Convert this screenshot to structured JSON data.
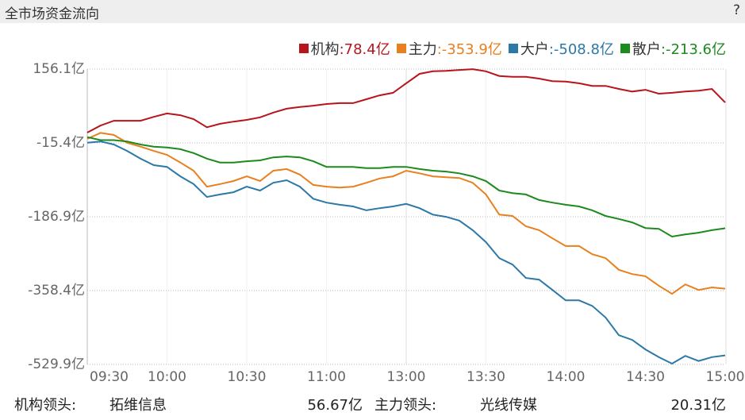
{
  "chart_data": {
    "type": "line",
    "title": "全市场资金流向",
    "help": "?",
    "categories": [
      "09:30",
      null,
      null,
      null,
      null,
      null,
      "10:00",
      null,
      null,
      null,
      null,
      null,
      "10:30",
      null,
      null,
      null,
      null,
      null,
      "11:00",
      null,
      null,
      null,
      null,
      null,
      "13:00",
      null,
      null,
      null,
      null,
      null,
      "13:30",
      null,
      null,
      null,
      null,
      null,
      "14:00",
      null,
      null,
      null,
      null,
      null,
      "14:30",
      null,
      null,
      null,
      null,
      null,
      "15:00"
    ],
    "ylim": [
      -529.9,
      156.1
    ],
    "yticks": [
      {
        "value": 156.1,
        "label": "156.1亿"
      },
      {
        "value": -15.4,
        "label": "-15.4亿"
      },
      {
        "value": -186.9,
        "label": "-186.9亿"
      },
      {
        "value": -358.4,
        "label": "-358.4亿"
      },
      {
        "value": -529.9,
        "label": "-529.9亿"
      }
    ],
    "grid": true,
    "series": [
      {
        "name": "机构",
        "legend_value": ":78.4亿",
        "color": "#b8141c",
        "values": [
          8.6,
          25,
          36,
          36,
          36,
          45,
          53,
          49,
          40,
          21,
          29,
          34,
          38,
          44,
          55,
          64,
          68,
          71,
          75,
          77,
          77,
          86,
          95,
          101,
          123,
          145,
          151,
          152,
          154,
          156,
          151,
          140,
          138,
          138,
          134,
          128,
          127,
          123,
          117,
          117,
          110,
          104,
          108,
          99,
          101,
          104,
          106,
          110,
          78.4
        ]
      },
      {
        "name": "主力",
        "legend_value": ":-353.9亿",
        "color": "#e8801e",
        "values": [
          -6,
          8,
          3,
          -15,
          -24,
          -34,
          -43,
          -61,
          -80,
          -117,
          -111,
          -104,
          -93,
          -104,
          -80,
          -76,
          -89,
          -113,
          -117,
          -119,
          -117,
          -108,
          -98,
          -93,
          -80,
          -86,
          -93,
          -95,
          -97,
          -108,
          -135,
          -182,
          -185,
          -209,
          -218,
          -237,
          -255,
          -255,
          -274,
          -283,
          -310,
          -320,
          -325,
          -347,
          -366,
          -344,
          -357,
          -351,
          -353.9
        ]
      },
      {
        "name": "大户",
        "legend_value": ":-508.8亿",
        "color": "#2c78a6",
        "values": [
          -15,
          -12,
          -19,
          -34,
          -52,
          -67,
          -71,
          -93,
          -111,
          -141,
          -135,
          -130,
          -117,
          -126,
          -108,
          -102,
          -117,
          -145,
          -154,
          -159,
          -163,
          -172,
          -167,
          -163,
          -157,
          -167,
          -182,
          -187,
          -196,
          -218,
          -246,
          -283,
          -298,
          -329,
          -333,
          -357,
          -381,
          -381,
          -394,
          -421,
          -462,
          -473,
          -495,
          -513,
          -528,
          -510,
          -522,
          -513,
          -508.8
        ]
      },
      {
        "name": "散户",
        "legend_value": ":-213.6亿",
        "color": "#1c8a1c",
        "values": [
          -2,
          -9,
          -9,
          -12,
          -19,
          -24,
          -26,
          -30,
          -39,
          -52,
          -61,
          -61,
          -58,
          -56,
          -49,
          -47,
          -49,
          -58,
          -71,
          -71,
          -71,
          -74,
          -74,
          -71,
          -71,
          -76,
          -80,
          -82,
          -86,
          -93,
          -104,
          -126,
          -132,
          -135,
          -148,
          -154,
          -159,
          -163,
          -172,
          -185,
          -192,
          -200,
          -213,
          -215,
          -233,
          -228,
          -224,
          -218,
          -213.6
        ]
      }
    ]
  },
  "footer": {
    "org_label": "机构领头:",
    "org_stock": "拓维信息",
    "org_amount": "56.67亿",
    "main_label": "主力领头:",
    "main_stock": "光线传媒",
    "main_amount": "20.31亿"
  }
}
